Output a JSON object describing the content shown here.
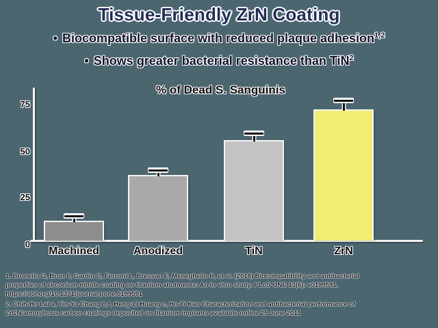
{
  "slide": {
    "title": "Tissue-Friendly ZrN Coating",
    "bullets": [
      {
        "marker": "•",
        "text": "Biocompatible surface with reduced plaque adhesion",
        "sup": "1,2"
      },
      {
        "marker": "•",
        "text": "Shows greater bacterial resistance than TiN",
        "sup": "2"
      }
    ]
  },
  "chart_data": {
    "type": "bar",
    "title": "% of Dead S. Sanguinis",
    "categories": [
      "Machined",
      "Anodized",
      "TiN",
      "ZrN"
    ],
    "values": [
      11,
      36,
      55,
      72
    ],
    "errors": [
      2,
      2,
      3,
      4
    ],
    "bar_colors": [
      "#8d8d8d",
      "#a9a9a9",
      "#c3c3c3",
      "#f2ec74"
    ],
    "yticks": [
      "0",
      "25",
      "50",
      "75"
    ],
    "ylim": [
      0,
      82
    ],
    "xlabel": "",
    "ylabel": "",
    "grid": false,
    "legend": "none",
    "error_bar_color": "#141414",
    "axis_color": "#f2f2f2"
  },
  "footnotes": {
    "f1_lines": [
      "1. Brunello G, Brun P, Gardin C, Ferroni L, Bressan E, Meneghello R, et al. (2018) Biocompatibility and antibacterial",
      "properties of zirconium nitride coating on titanium abutments: An in vitro study. PLoS ONE 13(6): e0199591.",
      "https://doi.org/10.1371/journal.pone.0199591"
    ],
    "f2_lines": [
      "2. Chih-Ho Lai a, Yin-Yu Chang b,*, Heng-Li Huang c, Ho-Yi Kao Characterization and antibacterial performance of",
      "ZrCN/amorphous carbon coatings deposited on titanium implants available online 25 June 2011"
    ]
  },
  "colors": {
    "background": "#4c6670",
    "title_text": "#232e55",
    "body_text": "#11132a",
    "chart_text": "#0d0d0d"
  }
}
